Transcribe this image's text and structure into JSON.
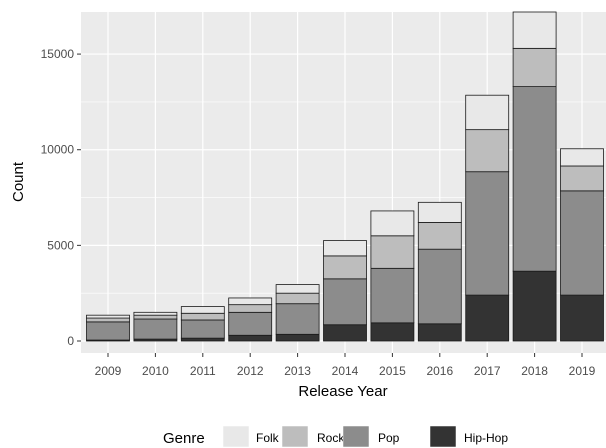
{
  "chart_data": {
    "type": "bar",
    "stacked": true,
    "xlabel": "Release Year",
    "ylabel": "Count",
    "ylim": [
      0,
      17200
    ],
    "yticks": [
      0,
      5000,
      10000,
      15000
    ],
    "grid": true,
    "legend_position": "bottom",
    "legend_title": "Genre",
    "categories": [
      "2009",
      "2010",
      "2011",
      "2012",
      "2013",
      "2014",
      "2015",
      "2016",
      "2017",
      "2018",
      "2019"
    ],
    "series": [
      {
        "name": "Hip-Hop",
        "color": "#333333",
        "values": [
          50,
          100,
          150,
          300,
          350,
          850,
          950,
          900,
          2400,
          3650,
          2400
        ]
      },
      {
        "name": "Pop",
        "color": "#8c8c8c",
        "values": [
          950,
          1050,
          950,
          1200,
          1600,
          2400,
          2850,
          3900,
          6450,
          9650,
          5450
        ]
      },
      {
        "name": "Rock",
        "color": "#bdbdbd",
        "values": [
          200,
          200,
          350,
          400,
          550,
          1200,
          1700,
          1400,
          2200,
          2000,
          1300
        ]
      },
      {
        "name": "Folk",
        "color": "#e8e8e8",
        "values": [
          150,
          150,
          350,
          350,
          450,
          800,
          1300,
          1050,
          1800,
          1900,
          900
        ]
      }
    ],
    "legend_order": [
      "Folk",
      "Rock",
      "Pop",
      "Hip-Hop"
    ],
    "panel_background": "#ebebeb",
    "grid_color": "#ffffff",
    "bar_outline": "#1a1a1a"
  }
}
